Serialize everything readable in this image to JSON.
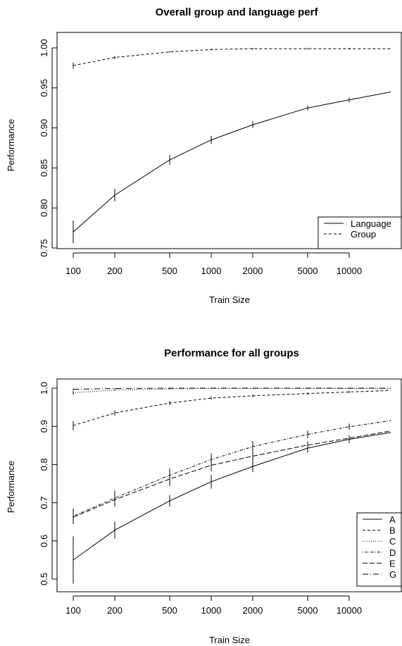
{
  "chart_data": [
    {
      "type": "line",
      "title": "Overall group and language perf",
      "xlabel": "Train Size",
      "ylabel": "Performance",
      "x_scale": "log",
      "x_ticks": [
        100,
        200,
        500,
        1000,
        2000,
        5000,
        10000
      ],
      "x_tick_labels": [
        "100",
        "200",
        "500",
        "1000",
        "2000",
        "5000",
        "10000"
      ],
      "y_ticks": [
        0.75,
        0.8,
        0.85,
        0.9,
        0.95,
        1.0
      ],
      "y_tick_labels": [
        "0.75",
        "0.80",
        "0.85",
        "0.90",
        "0.95",
        "1.00"
      ],
      "ylim": [
        0.75,
        1.01
      ],
      "legend_position": "bottom-right",
      "x": [
        100,
        200,
        500,
        1000,
        2000,
        5000,
        10000,
        20000
      ],
      "series": [
        {
          "name": "Language",
          "dash": "",
          "values": [
            0.77,
            0.816,
            0.86,
            0.885,
            0.904,
            0.925,
            0.935,
            0.945
          ],
          "error": [
            0.014,
            0.008,
            0.006,
            0.005,
            0.004,
            0.003,
            0.003,
            0
          ]
        },
        {
          "name": "Group",
          "dash": "4,3",
          "values": [
            0.978,
            0.988,
            0.995,
            0.998,
            0.999,
            0.999,
            0.999,
            0.999
          ],
          "error": [
            0.004,
            0.002,
            0.001,
            0.001,
            0.001,
            0.001,
            0.001,
            0
          ]
        }
      ]
    },
    {
      "type": "line",
      "title": "Performance for all groups",
      "xlabel": "Train Size",
      "ylabel": "Performance",
      "x_scale": "log",
      "x_ticks": [
        100,
        200,
        500,
        1000,
        2000,
        5000,
        10000
      ],
      "x_tick_labels": [
        "100",
        "200",
        "500",
        "1000",
        "2000",
        "5000",
        "10000"
      ],
      "y_ticks": [
        0.5,
        0.6,
        0.7,
        0.8,
        0.9,
        1.0
      ],
      "y_tick_labels": [
        "0.5",
        "0.6",
        "0.7",
        "0.8",
        "0.9",
        "1.0"
      ],
      "ylim": [
        0.48,
        1.01
      ],
      "legend_position": "bottom-right",
      "x": [
        100,
        200,
        500,
        1000,
        2000,
        5000,
        10000,
        20000
      ],
      "series": [
        {
          "name": "A",
          "dash": "",
          "values": [
            0.55,
            0.628,
            0.705,
            0.755,
            0.795,
            0.843,
            0.866,
            0.884
          ],
          "error": [
            0.062,
            0.022,
            0.015,
            0.018,
            0.015,
            0.012,
            0.01,
            0
          ]
        },
        {
          "name": "B",
          "dash": "4,3",
          "values": [
            0.902,
            0.935,
            0.961,
            0.974,
            0.98,
            0.986,
            0.99,
            0.994
          ],
          "error": [
            0.012,
            0.007,
            0.005,
            0.004,
            0.004,
            0.003,
            0.003,
            0
          ]
        },
        {
          "name": "C",
          "dash": "1,2",
          "values": [
            0.988,
            0.995,
            0.998,
            0.999,
            0.999,
            0.999,
            0.999,
            0.999
          ],
          "error": [
            0.005,
            0.002,
            0.001,
            0.001,
            0.001,
            0.001,
            0.001,
            0
          ]
        },
        {
          "name": "D",
          "dash": "1,2,4,2",
          "values": [
            0.665,
            0.712,
            0.772,
            0.813,
            0.847,
            0.879,
            0.899,
            0.915
          ],
          "error": [
            0.02,
            0.02,
            0.018,
            0.016,
            0.014,
            0.01,
            0.008,
            0
          ]
        },
        {
          "name": "E",
          "dash": "7,3",
          "values": [
            0.662,
            0.708,
            0.762,
            0.798,
            0.822,
            0.851,
            0.869,
            0.888
          ],
          "error": [
            0.018,
            0.018,
            0.018,
            0.016,
            0.014,
            0.01,
            0.008,
            0
          ]
        },
        {
          "name": "G",
          "dash": "8,3,1,3",
          "values": [
            0.997,
            0.999,
            1.0,
            1.0,
            1.0,
            1.0,
            1.0,
            1.0
          ],
          "error": [
            0.002,
            0.001,
            0,
            0,
            0,
            0,
            0,
            0
          ]
        }
      ]
    }
  ]
}
